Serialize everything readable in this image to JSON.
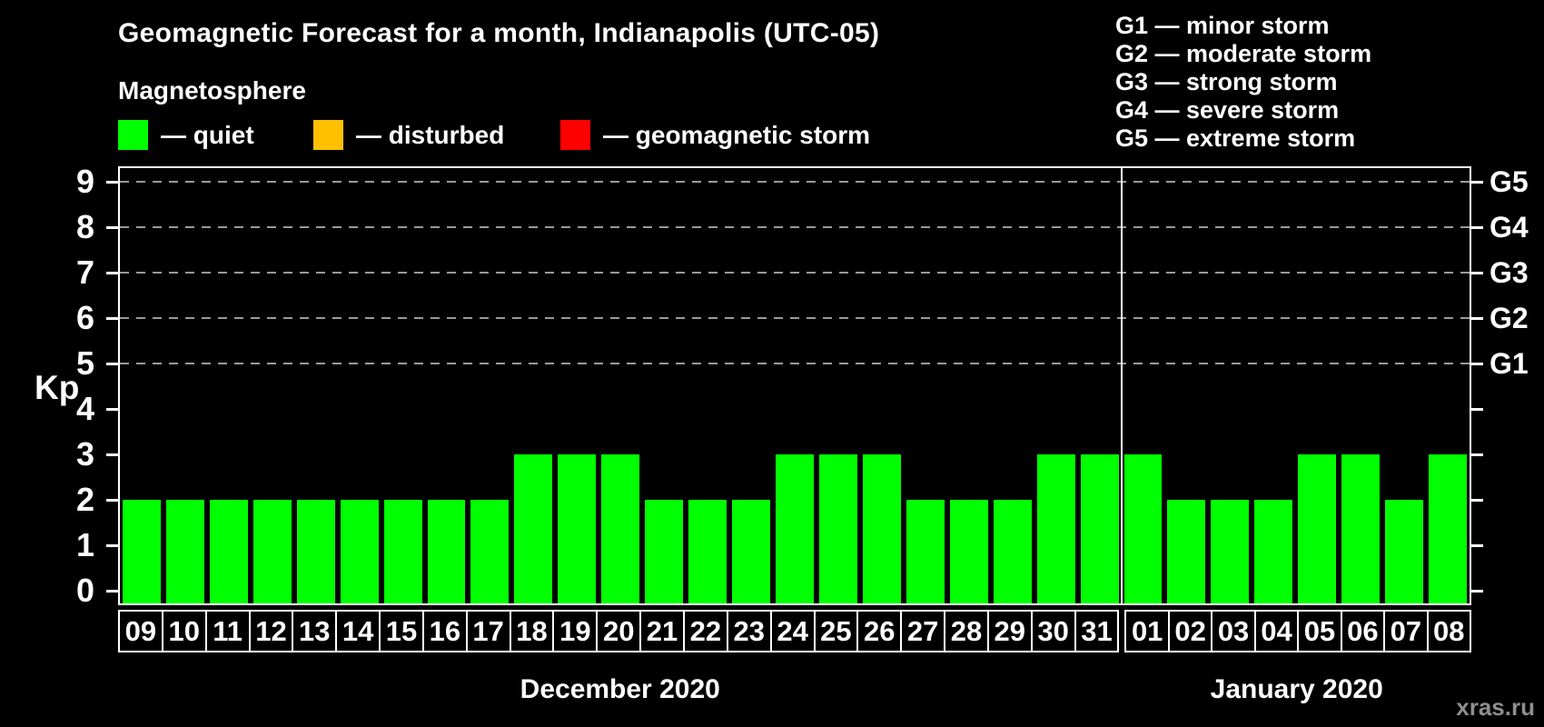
{
  "title": "Geomagnetic Forecast for a month, Indianapolis (UTC-05)",
  "subtitle": "Magnetosphere",
  "legend": {
    "items": [
      {
        "name": "quiet",
        "label": "— quiet",
        "color": "#00ff00"
      },
      {
        "name": "disturbed",
        "label": "— disturbed",
        "color": "#ffc000"
      },
      {
        "name": "geomagnetic-storm",
        "label": "— geomagnetic storm",
        "color": "#ff0000"
      }
    ]
  },
  "storm_scale": [
    "G1 — minor storm",
    "G2 — moderate storm",
    "G3 — strong storm",
    "G4 — severe storm",
    "G5 — extreme storm"
  ],
  "watermark": "xras.ru",
  "chart_data": {
    "type": "bar",
    "title": "Geomagnetic Forecast for a month, Indianapolis (UTC-05)",
    "ylabel": "Kp",
    "ylim": [
      -0.3,
      9.3
    ],
    "yticks": [
      0,
      1,
      2,
      3,
      4,
      5,
      6,
      7,
      8,
      9
    ],
    "gridlines_at": [
      5,
      6,
      7,
      8,
      9
    ],
    "grid": "dashed horizontal at G-storm levels only",
    "legend_position": "top-left",
    "bar_color": "#00ff00",
    "bar_status": "quiet",
    "axis_color": "#ffffff",
    "gridline_color": "#9a9a9a",
    "right_axis": [
      {
        "value": 5,
        "label": "G1"
      },
      {
        "value": 6,
        "label": "G2"
      },
      {
        "value": 7,
        "label": "G3"
      },
      {
        "value": 8,
        "label": "G4"
      },
      {
        "value": 9,
        "label": "G5"
      }
    ],
    "months": [
      {
        "label": "December 2020",
        "days": [
          "09",
          "10",
          "11",
          "12",
          "13",
          "14",
          "15",
          "16",
          "17",
          "18",
          "19",
          "20",
          "21",
          "22",
          "23",
          "24",
          "25",
          "26",
          "27",
          "28",
          "29",
          "30",
          "31"
        ],
        "values": [
          2,
          2,
          2,
          2,
          2,
          2,
          2,
          2,
          2,
          3,
          3,
          3,
          2,
          2,
          2,
          3,
          3,
          3,
          2,
          2,
          2,
          3,
          3
        ]
      },
      {
        "label": "January 2020",
        "days": [
          "01",
          "02",
          "03",
          "04",
          "05",
          "06",
          "07",
          "08"
        ],
        "values": [
          3,
          2,
          2,
          2,
          3,
          3,
          2,
          3
        ]
      }
    ]
  }
}
